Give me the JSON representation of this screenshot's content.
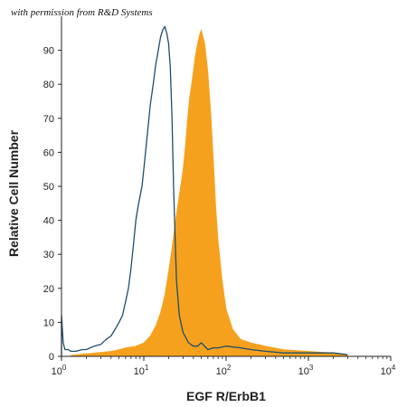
{
  "watermark": "with permission from R&D Systems",
  "chart_data": {
    "type": "histogram",
    "title": "",
    "xlabel": "EGF R/ErbB1",
    "ylabel": "Relative Cell Number",
    "x_scale": "log",
    "xlim": [
      1,
      10000
    ],
    "ylim": [
      0,
      100
    ],
    "x_ticks": [
      {
        "base": "10",
        "exp": "0",
        "value": 1
      },
      {
        "base": "10",
        "exp": "1",
        "value": 10
      },
      {
        "base": "10",
        "exp": "2",
        "value": 100
      },
      {
        "base": "10",
        "exp": "3",
        "value": 1000
      },
      {
        "base": "10",
        "exp": "4",
        "value": 10000
      }
    ],
    "y_ticks": [
      "0",
      "10",
      "20",
      "30",
      "40",
      "50",
      "60",
      "70",
      "80",
      "90"
    ],
    "y_tick_values": [
      0,
      10,
      20,
      30,
      40,
      50,
      60,
      70,
      80,
      90
    ],
    "grid": false,
    "series": [
      {
        "style": "outline",
        "color": "#1f4e6b",
        "x": [
          1,
          1.05,
          1.1,
          1.2,
          1.3,
          1.5,
          1.8,
          2,
          2.5,
          3,
          3.5,
          4,
          4.5,
          5,
          5.5,
          6,
          6.5,
          7,
          7.5,
          8,
          8.5,
          9,
          9.5,
          10,
          11,
          12,
          13,
          14,
          15,
          16,
          17,
          18,
          19,
          20,
          21,
          22,
          23,
          24,
          25,
          27,
          30,
          35,
          40,
          45,
          50,
          60,
          70,
          80,
          100,
          150,
          200,
          300,
          500,
          1000,
          2000,
          3000
        ],
        "y": [
          12,
          4,
          2,
          2,
          1.5,
          1.5,
          2,
          2,
          3,
          3.5,
          5,
          6,
          8,
          10,
          12,
          16,
          20,
          26,
          33,
          40,
          44,
          47,
          50,
          55,
          65,
          74,
          80,
          86,
          90,
          94,
          96,
          97,
          95,
          92,
          85,
          70,
          50,
          35,
          22,
          12,
          7,
          4,
          3,
          3,
          4,
          2,
          2.5,
          2.5,
          3,
          2.5,
          2,
          1.5,
          1,
          1,
          1,
          0.5
        ]
      },
      {
        "style": "filled",
        "color": "#f5a11e",
        "x": [
          1.3,
          2,
          3,
          4,
          5,
          6,
          8,
          10,
          12,
          14,
          16,
          18,
          20,
          22,
          24,
          26,
          28,
          30,
          32,
          34,
          36,
          38,
          40,
          42,
          45,
          48,
          50,
          55,
          60,
          65,
          70,
          75,
          80,
          90,
          100,
          120,
          150,
          200,
          300,
          500,
          1000,
          2000,
          3000
        ],
        "y": [
          0.3,
          0.8,
          1.2,
          1.5,
          2,
          2.5,
          3,
          4,
          6,
          9,
          13,
          18,
          25,
          32,
          39,
          45,
          50,
          55,
          62,
          70,
          76,
          80,
          84,
          88,
          92,
          95,
          96,
          92,
          84,
          72,
          58,
          44,
          34,
          22,
          14,
          8,
          5,
          4,
          3,
          2,
          1.5,
          1,
          0.5
        ]
      }
    ]
  }
}
